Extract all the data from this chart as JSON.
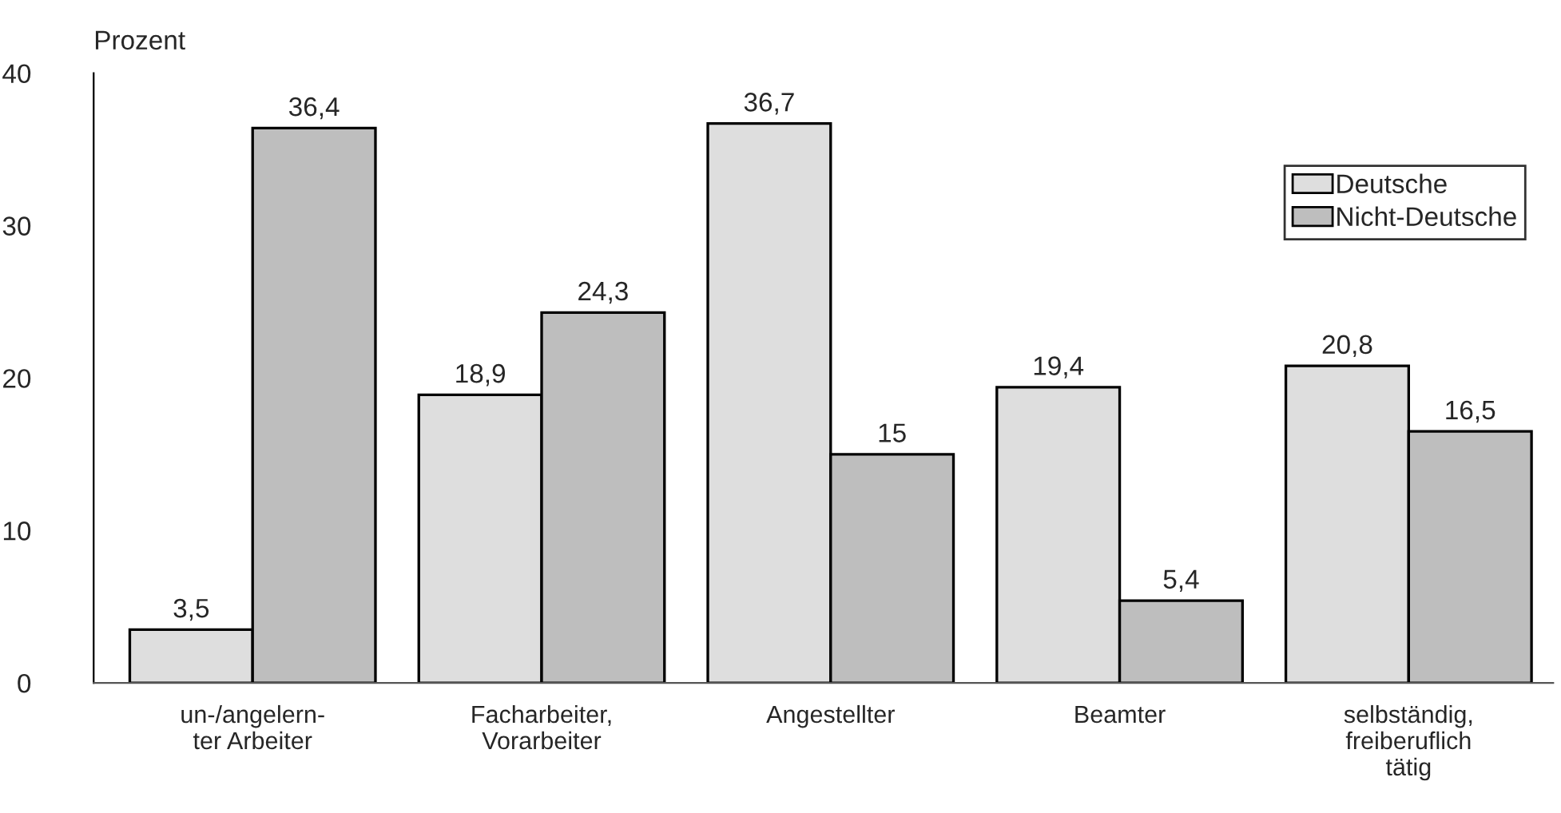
{
  "chart_data": {
    "type": "bar",
    "ylabel": "Prozent",
    "categories": [
      "un-/angelern-\nter Arbeiter",
      "Facharbeiter,\nVorarbeiter",
      "Angestellter",
      "Beamter",
      "selbständig,\nfreiberuflich\ntätig"
    ],
    "series": [
      {
        "name": "Deutsche",
        "color": "#dedede",
        "values": [
          3.5,
          18.9,
          36.7,
          19.4,
          20.8
        ],
        "value_labels": [
          "3,5",
          "18,9",
          "36,7",
          "19,4",
          "20,8"
        ]
      },
      {
        "name": "Nicht-Deutsche",
        "color": "#bebebe",
        "values": [
          36.4,
          24.3,
          15,
          5.4,
          16.5
        ],
        "value_labels": [
          "36,4",
          "24,3",
          "15",
          "5,4",
          "16,5"
        ]
      }
    ],
    "ylim": [
      0,
      40
    ],
    "yticks": [
      0,
      10,
      20,
      30,
      40
    ],
    "grid": false,
    "legend": "top right"
  }
}
